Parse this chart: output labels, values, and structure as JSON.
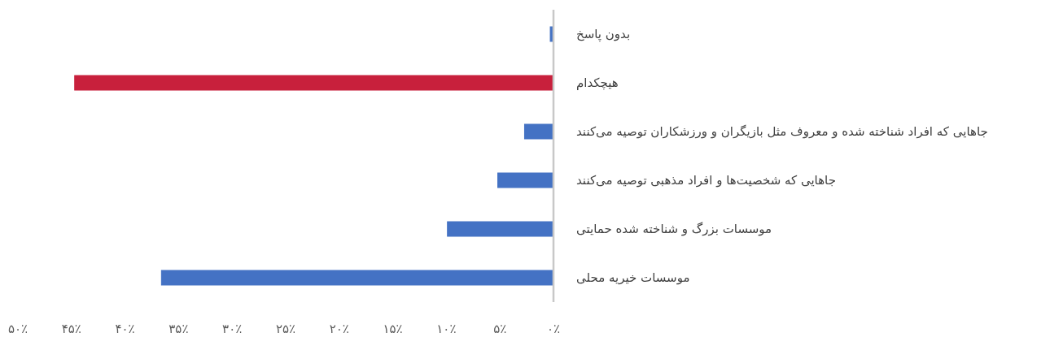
{
  "chart_data": {
    "type": "bar",
    "orientation": "horizontal",
    "categories": [
      "بدون پاسخ",
      "هیچکدام",
      "جاهایی که افراد شناخته شده و معروف مثل بازیگران و ورزشکاران توصیه می‌کنند",
      "جاهایی که شخصیت‌ها و افراد مذهبی توصیه می‌کنند",
      "موسسات بزرگ و شناخته شده حمایتی",
      "موسسات خیریه محلی"
    ],
    "values": [
      0.3,
      44.7,
      2.7,
      5.2,
      9.9,
      36.6
    ],
    "colors": [
      "#4472c4",
      "#c8203c",
      "#4472c4",
      "#4472c4",
      "#4472c4",
      "#4472c4"
    ],
    "xlim": [
      50,
      0
    ],
    "xticks": [
      {
        "value": 0,
        "label": "۰٪"
      },
      {
        "value": 5,
        "label": "۵٪"
      },
      {
        "value": 10,
        "label": "۱۰٪"
      },
      {
        "value": 15,
        "label": "۱۵٪"
      },
      {
        "value": 20,
        "label": "۲۰٪"
      },
      {
        "value": 25,
        "label": "۲۵٪"
      },
      {
        "value": 30,
        "label": "۳۰٪"
      },
      {
        "value": 35,
        "label": "۳۵٪"
      },
      {
        "value": 40,
        "label": "۴۰٪"
      },
      {
        "value": 45,
        "label": "۴۵٪"
      },
      {
        "value": 50,
        "label": "۵۰٪"
      }
    ]
  }
}
